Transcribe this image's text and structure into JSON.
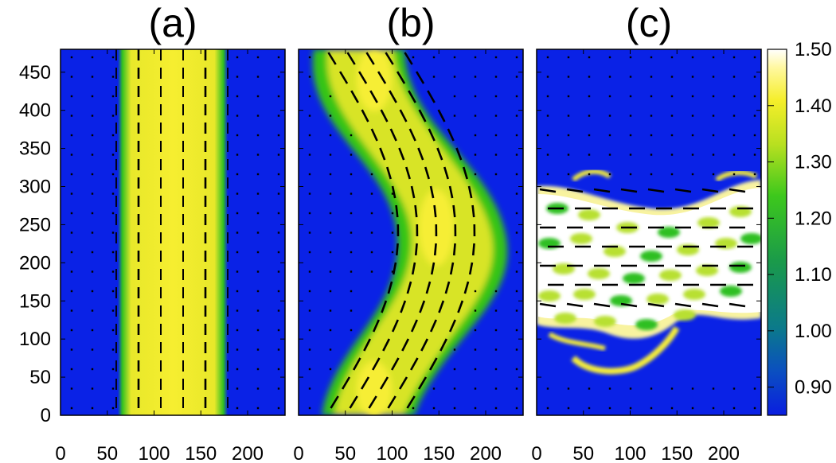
{
  "panels": [
    {
      "label": "(a)",
      "pattern": "straight-stripe"
    },
    {
      "label": "(b)",
      "pattern": "wavy-stripe"
    },
    {
      "label": "(c)",
      "pattern": "horizontal-cells"
    }
  ],
  "chart_data": {
    "type": "heatmap",
    "panel_count": 3,
    "x_ticks": [
      0,
      50,
      100,
      150,
      200
    ],
    "x_range": [
      0,
      240
    ],
    "y_ticks": [
      0,
      50,
      100,
      150,
      200,
      250,
      300,
      350,
      400,
      450
    ],
    "y_range": [
      0,
      480
    ],
    "colorbar": {
      "ticks": [
        "1.50",
        "1.40",
        "1.30",
        "1.20",
        "1.10",
        "1.00",
        "0.90"
      ],
      "range": [
        0.85,
        1.5
      ],
      "colors": [
        "#0a1ee0",
        "#0b6a8f",
        "#24a83a",
        "#34c814",
        "#f2ec2a",
        "#ffffff"
      ]
    },
    "background_color": "#0a22e6",
    "glyphs": "black dashes indicate local orientation field"
  }
}
